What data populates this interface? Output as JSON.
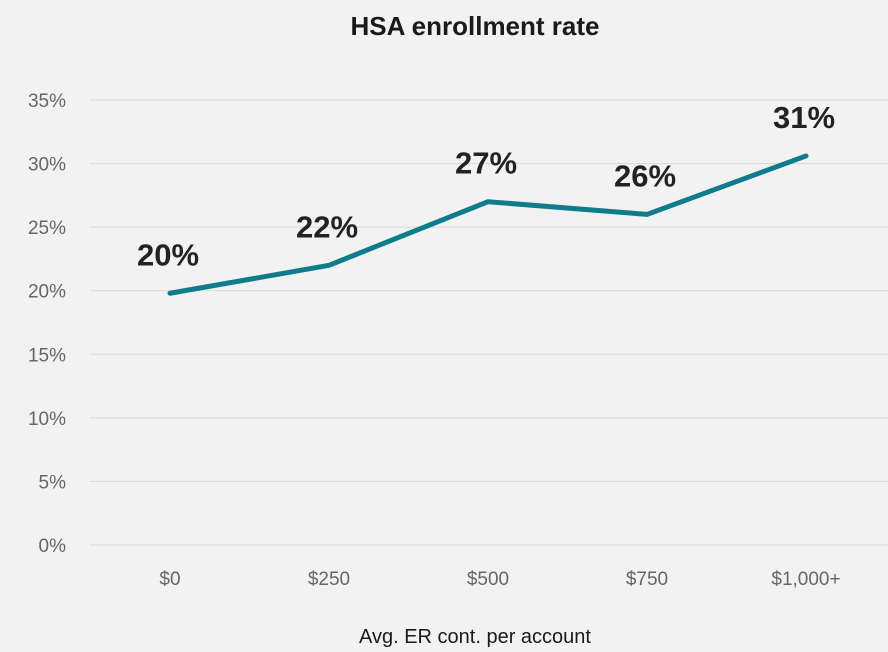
{
  "chart_data": {
    "type": "line",
    "title": "HSA enrollment rate",
    "xlabel": "Avg. ER cont. per account",
    "ylabel": "",
    "categories": [
      "$0",
      "$250",
      "$500",
      "$750",
      "$1,000+"
    ],
    "series": [
      {
        "values": [
          19.8,
          22.0,
          27.0,
          26.0,
          30.6
        ],
        "data_labels": [
          "20%",
          "22%",
          "27%",
          "26%",
          "31%"
        ]
      }
    ],
    "ylim": [
      0,
      35
    ],
    "yticks": [
      "0%",
      "5%",
      "10%",
      "15%",
      "20%",
      "25%",
      "30%",
      "35%"
    ],
    "ytick_values": [
      0,
      5,
      10,
      15,
      20,
      25,
      30,
      35
    ],
    "grid": true,
    "legend": "none",
    "line_color": "#0f7c8c"
  }
}
